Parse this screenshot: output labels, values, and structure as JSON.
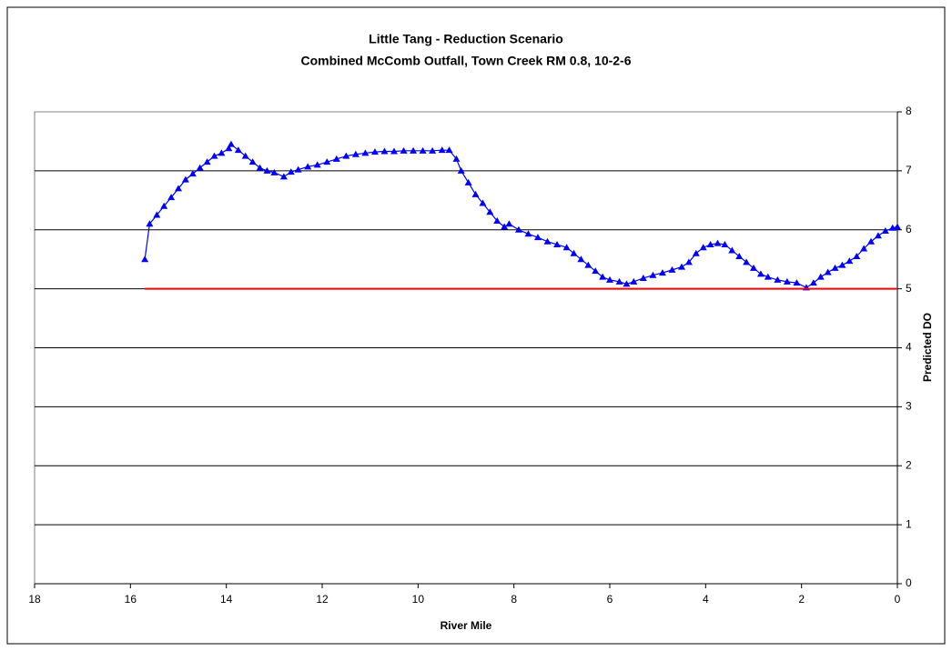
{
  "chart_data": {
    "type": "line",
    "title": "Little Tang - Reduction Scenario",
    "subtitle": "Combined McComb Outfall, Town Creek RM 0.8, 10-2-6",
    "x_label": "River Mile",
    "y_label": "Predicted DO",
    "xlim": [
      18,
      0
    ],
    "xticks": [
      18,
      16,
      14,
      12,
      10,
      8,
      6,
      4,
      2,
      0
    ],
    "ylim": [
      0,
      8
    ],
    "yticks": [
      0,
      1,
      2,
      3,
      4,
      5,
      6,
      7,
      8
    ],
    "y_axis_side": "right",
    "grid": true,
    "series": [
      {
        "color": "#0000ff",
        "marker": "triangle",
        "x": [
          15.7,
          15.6,
          15.45,
          15.3,
          15.15,
          15.0,
          14.85,
          14.7,
          14.55,
          14.4,
          14.25,
          14.1,
          13.95,
          13.9,
          13.75,
          13.6,
          13.45,
          13.3,
          13.15,
          13.0,
          12.8,
          12.65,
          12.5,
          12.3,
          12.1,
          11.9,
          11.7,
          11.5,
          11.3,
          11.1,
          10.9,
          10.7,
          10.5,
          10.3,
          10.1,
          9.9,
          9.7,
          9.5,
          9.35,
          9.2,
          9.1,
          8.95,
          8.8,
          8.65,
          8.5,
          8.35,
          8.2,
          8.1,
          7.9,
          7.7,
          7.5,
          7.3,
          7.1,
          6.9,
          6.75,
          6.6,
          6.45,
          6.3,
          6.15,
          6.0,
          5.8,
          5.65,
          5.5,
          5.3,
          5.1,
          4.9,
          4.7,
          4.5,
          4.35,
          4.2,
          4.05,
          3.9,
          3.75,
          3.6,
          3.45,
          3.3,
          3.15,
          3.0,
          2.85,
          2.7,
          2.5,
          2.3,
          2.1,
          1.9,
          1.75,
          1.6,
          1.45,
          1.3,
          1.15,
          1.0,
          0.85,
          0.7,
          0.55,
          0.4,
          0.25,
          0.1,
          0.0
        ],
        "values": [
          5.5,
          6.1,
          6.25,
          6.4,
          6.55,
          6.7,
          6.85,
          6.95,
          7.05,
          7.15,
          7.25,
          7.3,
          7.38,
          7.45,
          7.35,
          7.25,
          7.15,
          7.05,
          7.0,
          6.97,
          6.9,
          6.98,
          7.02,
          7.07,
          7.1,
          7.15,
          7.2,
          7.25,
          7.28,
          7.3,
          7.32,
          7.33,
          7.33,
          7.34,
          7.34,
          7.34,
          7.34,
          7.35,
          7.35,
          7.2,
          7.0,
          6.8,
          6.6,
          6.45,
          6.3,
          6.15,
          6.05,
          6.1,
          6.0,
          5.93,
          5.87,
          5.8,
          5.75,
          5.7,
          5.6,
          5.5,
          5.4,
          5.3,
          5.2,
          5.15,
          5.12,
          5.08,
          5.12,
          5.18,
          5.23,
          5.27,
          5.32,
          5.37,
          5.45,
          5.6,
          5.7,
          5.75,
          5.77,
          5.75,
          5.65,
          5.55,
          5.45,
          5.35,
          5.25,
          5.2,
          5.15,
          5.12,
          5.1,
          5.02,
          5.1,
          5.2,
          5.28,
          5.35,
          5.4,
          5.47,
          5.55,
          5.68,
          5.8,
          5.9,
          5.98,
          6.03,
          6.05
        ]
      },
      {
        "color": "#ff0000",
        "marker": "none",
        "x": [
          15.7,
          0
        ],
        "values": [
          5,
          5
        ]
      }
    ]
  }
}
